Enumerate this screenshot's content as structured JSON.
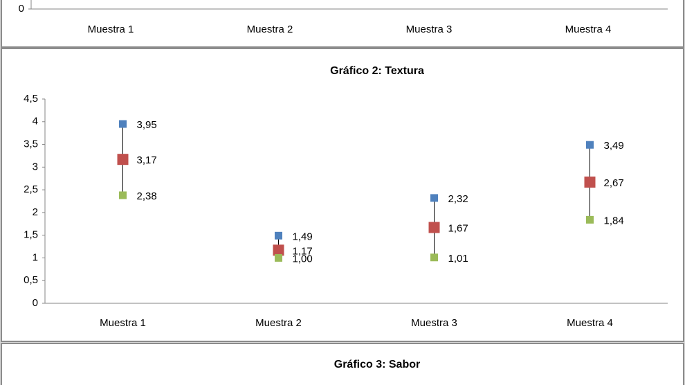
{
  "chart_data": [
    {
      "type": "hilo",
      "categories": [
        "Muestra 1",
        "Muestra 2",
        "Muestra 3",
        "Muestra 4"
      ],
      "yticks": [
        0
      ]
    },
    {
      "type": "hilo",
      "title": "Gráfico 2: Textura",
      "categories": [
        "Muestra 1",
        "Muestra 2",
        "Muestra 3",
        "Muestra 4"
      ],
      "series": [
        {
          "color": "#4f81bd",
          "values": [
            3.95,
            1.49,
            2.32,
            3.49
          ],
          "value_labels": [
            "3,95",
            "1,49",
            "2,32",
            "3,49"
          ]
        },
        {
          "color": "#c0504d",
          "values": [
            3.17,
            1.17,
            1.67,
            2.67
          ],
          "value_labels": [
            "3,17",
            "1,17",
            "1,67",
            "2,67"
          ]
        },
        {
          "color": "#9bbb59",
          "values": [
            2.38,
            1.0,
            1.01,
            1.84
          ],
          "value_labels": [
            "2,38",
            "1,00",
            "1,01",
            "1,84"
          ]
        }
      ],
      "ylim": [
        0,
        4.5
      ],
      "yticks": [
        0,
        {
          "value": 0.5,
          "label": "0,5"
        },
        1,
        {
          "value": 1.5,
          "label": "1,5"
        },
        2,
        {
          "value": 2.5,
          "label": "2,5"
        },
        3,
        {
          "value": 3.5,
          "label": "3,5"
        },
        4,
        {
          "value": 4.5,
          "label": "4,5"
        }
      ]
    },
    {
      "type": "hilo",
      "title": "Gráfico 3: Sabor"
    }
  ]
}
